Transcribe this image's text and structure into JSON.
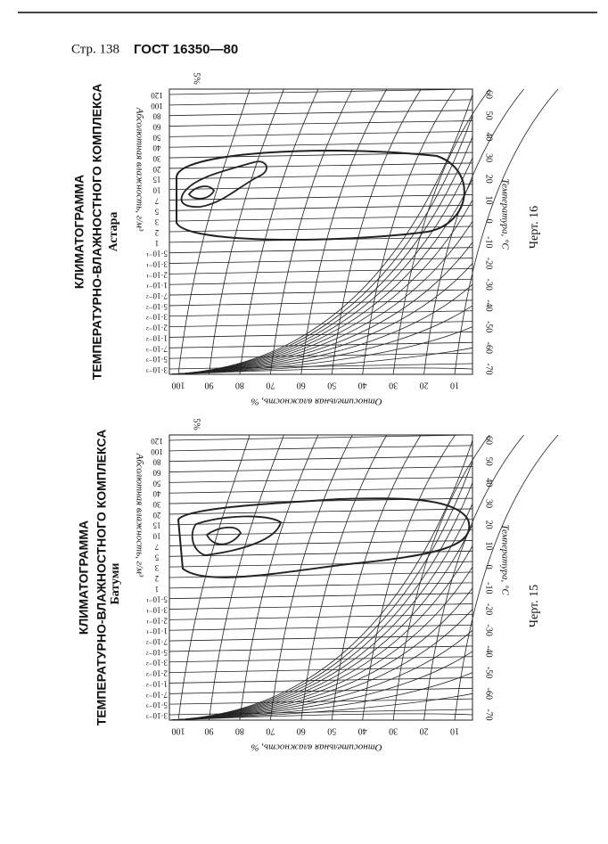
{
  "header": {
    "page": "Стр. 138",
    "standard": "ГОСТ 16350—80"
  },
  "figures": [
    {
      "title": [
        "КЛИМАТОГРАММА",
        "ТЕМПЕРАТУРНО-ВЛАЖНОСТНОГО КОМПЛЕКСА"
      ],
      "place": "Астара",
      "caption": "Черт. 16"
    },
    {
      "title": [
        "КЛИМАТОГРАММА",
        "ТЕМПЕРАТУРНО-ВЛАЖНОСТНОГО КОМПЛЕКСА"
      ],
      "place": "Батуми",
      "caption": "Черт. 15"
    }
  ],
  "axes": {
    "absolute_label": "Абсолютная влажность, г/м³",
    "temperature_label": "Температура, °С",
    "relative_label": "Относительная влажность, %",
    "curve_label": "5%",
    "absolute_ticks": [
      "120",
      "100",
      "80",
      "60",
      "50",
      "40",
      "30",
      "20",
      "15",
      "10",
      "7",
      "5",
      "3",
      "2",
      "1",
      "5·10⁻¹",
      "3·10⁻¹",
      "2·10⁻¹",
      "1·10⁻¹",
      "7·10⁻²",
      "5·10⁻²",
      "3·10⁻²",
      "2·10⁻²",
      "1·10⁻²",
      "7·10⁻³",
      "5·10⁻³",
      "3·10⁻³"
    ],
    "temperature_ticks": [
      "60",
      "50",
      "40",
      "30",
      "20",
      "10",
      "0",
      "-10",
      "-20",
      "-30",
      "-40",
      "-50",
      "-60",
      "-70"
    ],
    "relative_ticks": [
      "100",
      "90",
      "80",
      "70",
      "60",
      "50",
      "40",
      "30",
      "20",
      "10"
    ]
  }
}
